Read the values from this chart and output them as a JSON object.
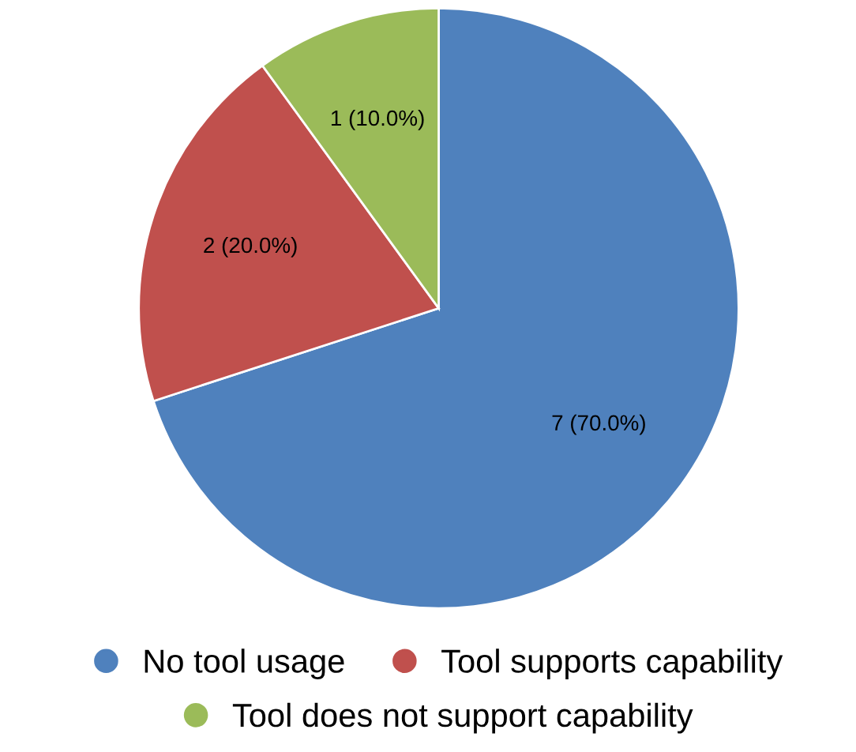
{
  "chart_data": {
    "type": "pie",
    "categories": [
      "No tool usage",
      "Tool supports capability",
      "Tool does not support capability"
    ],
    "values": [
      7,
      2,
      1
    ],
    "colors": [
      "#4f81bd",
      "#c0504d",
      "#9bbb59"
    ],
    "value_labels": [
      "7 (70.0%)",
      "2 (20.0%)",
      "1 (10.0%)"
    ],
    "legend": "bottom"
  }
}
